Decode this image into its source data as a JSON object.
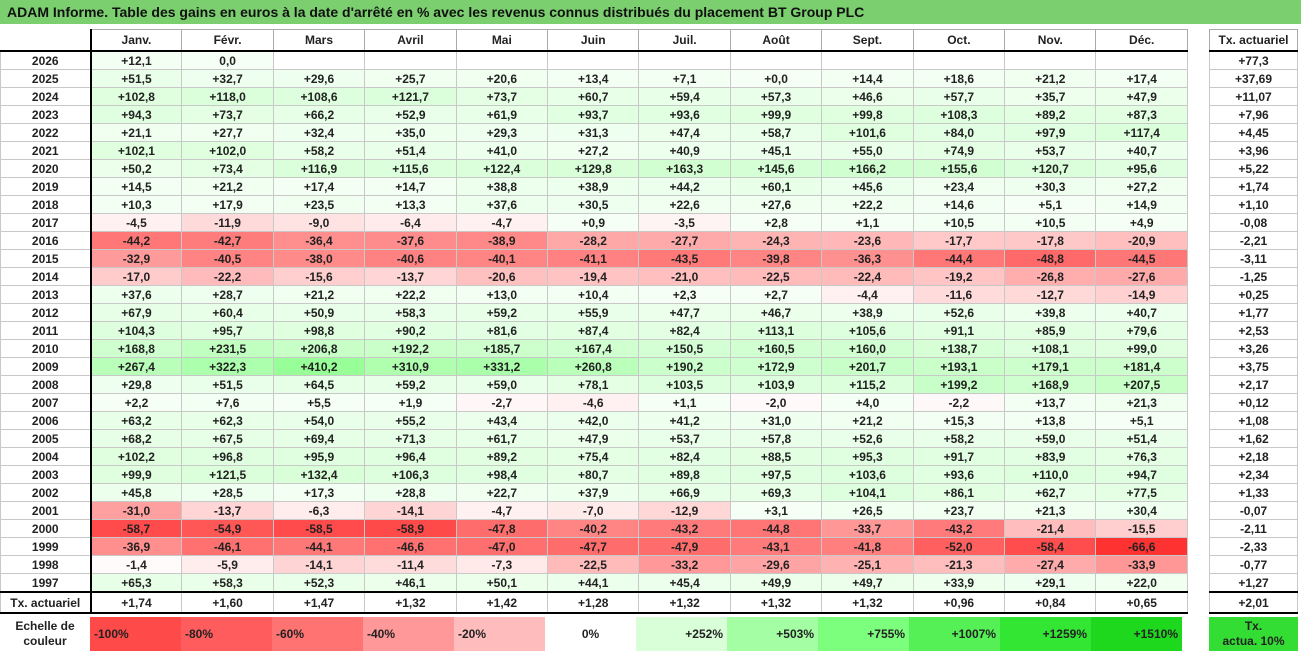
{
  "title": "ADAM Informe. Table des gains en euros à la date d'arrêté en % avec les revenus connus distribués du placement BT Group PLC",
  "months": [
    "Janv.",
    "Févr.",
    "Mars",
    "Avril",
    "Mai",
    "Juin",
    "Juil.",
    "Août",
    "Sept.",
    "Oct.",
    "Nov.",
    "Déc."
  ],
  "side_header": "Tx. actuariel",
  "rows": [
    {
      "year": "2026",
      "v": [
        "+12,1",
        "0,0",
        "",
        "",
        "",
        "",
        "",
        "",
        "",
        "",
        "",
        ""
      ],
      "tx": "+77,3"
    },
    {
      "year": "2025",
      "v": [
        "+51,5",
        "+32,7",
        "+29,6",
        "+25,7",
        "+20,6",
        "+13,4",
        "+7,1",
        "+0,0",
        "+14,4",
        "+18,6",
        "+21,2",
        "+17,4"
      ],
      "tx": "+37,69"
    },
    {
      "year": "2024",
      "v": [
        "+102,8",
        "+118,0",
        "+108,6",
        "+121,7",
        "+73,7",
        "+60,7",
        "+59,4",
        "+57,3",
        "+46,6",
        "+57,7",
        "+35,7",
        "+47,9"
      ],
      "tx": "+11,07"
    },
    {
      "year": "2023",
      "v": [
        "+94,3",
        "+73,7",
        "+66,2",
        "+52,9",
        "+61,9",
        "+93,7",
        "+93,6",
        "+99,9",
        "+99,8",
        "+108,3",
        "+89,2",
        "+87,3"
      ],
      "tx": "+7,96"
    },
    {
      "year": "2022",
      "v": [
        "+21,1",
        "+27,7",
        "+32,4",
        "+35,0",
        "+29,3",
        "+31,3",
        "+47,4",
        "+58,7",
        "+101,6",
        "+84,0",
        "+97,9",
        "+117,4"
      ],
      "tx": "+4,45"
    },
    {
      "year": "2021",
      "v": [
        "+102,1",
        "+102,0",
        "+58,2",
        "+51,4",
        "+41,0",
        "+27,2",
        "+40,9",
        "+45,1",
        "+55,0",
        "+74,9",
        "+53,7",
        "+40,7"
      ],
      "tx": "+3,96"
    },
    {
      "year": "2020",
      "v": [
        "+50,2",
        "+73,4",
        "+116,9",
        "+115,6",
        "+122,4",
        "+129,8",
        "+163,3",
        "+145,6",
        "+166,2",
        "+155,6",
        "+120,7",
        "+95,6"
      ],
      "tx": "+5,22"
    },
    {
      "year": "2019",
      "v": [
        "+14,5",
        "+21,2",
        "+17,4",
        "+14,7",
        "+38,8",
        "+38,9",
        "+44,2",
        "+60,1",
        "+45,6",
        "+23,4",
        "+30,3",
        "+27,2"
      ],
      "tx": "+1,74"
    },
    {
      "year": "2018",
      "v": [
        "+10,3",
        "+17,9",
        "+23,5",
        "+13,3",
        "+37,6",
        "+30,5",
        "+22,6",
        "+27,6",
        "+22,2",
        "+14,6",
        "+5,1",
        "+14,9"
      ],
      "tx": "+1,10"
    },
    {
      "year": "2017",
      "v": [
        "-4,5",
        "-11,9",
        "-9,0",
        "-6,4",
        "-4,7",
        "+0,9",
        "-3,5",
        "+2,8",
        "+1,1",
        "+10,5",
        "+10,5",
        "+4,9"
      ],
      "tx": "-0,08"
    },
    {
      "year": "2016",
      "v": [
        "-44,2",
        "-42,7",
        "-36,4",
        "-37,6",
        "-38,9",
        "-28,2",
        "-27,7",
        "-24,3",
        "-23,6",
        "-17,7",
        "-17,8",
        "-20,9"
      ],
      "tx": "-2,21"
    },
    {
      "year": "2015",
      "v": [
        "-32,9",
        "-40,5",
        "-38,0",
        "-40,6",
        "-40,1",
        "-41,1",
        "-43,5",
        "-39,8",
        "-36,3",
        "-44,4",
        "-48,8",
        "-44,5"
      ],
      "tx": "-3,11"
    },
    {
      "year": "2014",
      "v": [
        "-17,0",
        "-22,2",
        "-15,6",
        "-13,7",
        "-20,6",
        "-19,4",
        "-21,0",
        "-22,5",
        "-22,4",
        "-19,2",
        "-26,8",
        "-27,6"
      ],
      "tx": "-1,25"
    },
    {
      "year": "2013",
      "v": [
        "+37,6",
        "+28,7",
        "+21,2",
        "+22,2",
        "+13,0",
        "+10,4",
        "+2,3",
        "+2,7",
        "-4,4",
        "-11,6",
        "-12,7",
        "-14,9"
      ],
      "tx": "+0,25"
    },
    {
      "year": "2012",
      "v": [
        "+67,9",
        "+60,4",
        "+50,9",
        "+58,3",
        "+59,2",
        "+55,9",
        "+47,7",
        "+46,7",
        "+38,9",
        "+52,6",
        "+39,8",
        "+40,7"
      ],
      "tx": "+1,77"
    },
    {
      "year": "2011",
      "v": [
        "+104,3",
        "+95,7",
        "+98,8",
        "+90,2",
        "+81,6",
        "+87,4",
        "+82,4",
        "+113,1",
        "+105,6",
        "+91,1",
        "+85,9",
        "+79,6"
      ],
      "tx": "+2,53"
    },
    {
      "year": "2010",
      "v": [
        "+168,8",
        "+231,5",
        "+206,8",
        "+192,2",
        "+185,7",
        "+167,4",
        "+150,5",
        "+160,5",
        "+160,0",
        "+138,7",
        "+108,1",
        "+99,0"
      ],
      "tx": "+3,26"
    },
    {
      "year": "2009",
      "v": [
        "+267,4",
        "+322,3",
        "+410,2",
        "+310,9",
        "+331,2",
        "+260,8",
        "+190,2",
        "+172,9",
        "+201,7",
        "+193,1",
        "+179,1",
        "+181,4"
      ],
      "tx": "+3,75"
    },
    {
      "year": "2008",
      "v": [
        "+29,8",
        "+51,5",
        "+64,5",
        "+59,2",
        "+59,0",
        "+78,1",
        "+103,5",
        "+103,9",
        "+115,2",
        "+199,2",
        "+168,9",
        "+207,5"
      ],
      "tx": "+2,17"
    },
    {
      "year": "2007",
      "v": [
        "+2,2",
        "+7,6",
        "+5,5",
        "+1,9",
        "-2,7",
        "-4,6",
        "+1,1",
        "-2,0",
        "+4,0",
        "-2,2",
        "+13,7",
        "+21,3"
      ],
      "tx": "+0,12"
    },
    {
      "year": "2006",
      "v": [
        "+63,2",
        "+62,3",
        "+54,0",
        "+55,2",
        "+43,4",
        "+42,0",
        "+41,2",
        "+31,0",
        "+21,2",
        "+15,3",
        "+13,8",
        "+5,1"
      ],
      "tx": "+1,08"
    },
    {
      "year": "2005",
      "v": [
        "+68,2",
        "+67,5",
        "+69,4",
        "+71,3",
        "+61,7",
        "+47,9",
        "+53,7",
        "+57,8",
        "+52,6",
        "+58,2",
        "+59,0",
        "+51,4"
      ],
      "tx": "+1,62"
    },
    {
      "year": "2004",
      "v": [
        "+102,2",
        "+96,8",
        "+95,9",
        "+96,4",
        "+89,2",
        "+75,4",
        "+82,4",
        "+88,5",
        "+95,3",
        "+91,7",
        "+83,9",
        "+76,3"
      ],
      "tx": "+2,18"
    },
    {
      "year": "2003",
      "v": [
        "+99,9",
        "+121,5",
        "+132,4",
        "+106,3",
        "+98,4",
        "+80,7",
        "+89,8",
        "+97,5",
        "+103,6",
        "+93,6",
        "+110,0",
        "+94,7"
      ],
      "tx": "+2,34"
    },
    {
      "year": "2002",
      "v": [
        "+45,8",
        "+28,5",
        "+17,3",
        "+28,8",
        "+22,7",
        "+37,9",
        "+66,9",
        "+69,3",
        "+104,1",
        "+86,1",
        "+62,7",
        "+77,5"
      ],
      "tx": "+1,33"
    },
    {
      "year": "2001",
      "v": [
        "-31,0",
        "-13,7",
        "-6,3",
        "-14,1",
        "-4,7",
        "-7,0",
        "-12,9",
        "+3,1",
        "+26,5",
        "+23,7",
        "+21,3",
        "+30,4"
      ],
      "tx": "-0,07"
    },
    {
      "year": "2000",
      "v": [
        "-58,7",
        "-54,9",
        "-58,5",
        "-58,9",
        "-47,8",
        "-40,2",
        "-43,2",
        "-44,8",
        "-33,7",
        "-43,2",
        "-21,4",
        "-15,5"
      ],
      "tx": "-2,11"
    },
    {
      "year": "1999",
      "v": [
        "-36,9",
        "-46,1",
        "-44,1",
        "-46,6",
        "-47,0",
        "-47,7",
        "-47,9",
        "-43,1",
        "-41,8",
        "-52,0",
        "-58,4",
        "-66,6"
      ],
      "tx": "-2,33"
    },
    {
      "year": "1998",
      "v": [
        "-1,4",
        "-5,9",
        "-14,1",
        "-11,4",
        "-7,3",
        "-22,5",
        "-33,2",
        "-29,6",
        "-25,1",
        "-21,3",
        "-27,4",
        "-33,9"
      ],
      "tx": "-0,77"
    },
    {
      "year": "1997",
      "v": [
        "+65,3",
        "+58,3",
        "+52,3",
        "+46,1",
        "+50,1",
        "+44,1",
        "+45,4",
        "+49,9",
        "+49,7",
        "+33,9",
        "+29,1",
        "+22,0"
      ],
      "tx": "+1,27"
    }
  ],
  "tx_row": {
    "label": "Tx. actuariel",
    "v": [
      "+1,74",
      "+1,60",
      "+1,47",
      "+1,32",
      "+1,42",
      "+1,28",
      "+1,32",
      "+1,32",
      "+1,32",
      "+0,96",
      "+0,84",
      "+0,65"
    ],
    "total": "+2,01"
  },
  "legend": {
    "label_line1": "Echelle de",
    "label_line2": "couleur",
    "swatches": [
      {
        "text": "-100%",
        "color": "#ff4a4a",
        "align": "left"
      },
      {
        "text": "-80%",
        "color": "#ff5d5d",
        "align": "left"
      },
      {
        "text": "-60%",
        "color": "#ff7373",
        "align": "left"
      },
      {
        "text": "-40%",
        "color": "#ff9898",
        "align": "left"
      },
      {
        "text": "-20%",
        "color": "#ffbcbc",
        "align": "left"
      },
      {
        "text": "0%",
        "color": "#ffffff",
        "align": "center"
      },
      {
        "text": "+252%",
        "color": "#d8ffd8",
        "align": "right"
      },
      {
        "text": "+503%",
        "color": "#a4ffa4",
        "align": "right"
      },
      {
        "text": "+755%",
        "color": "#7cff7c",
        "align": "right"
      },
      {
        "text": "+1007%",
        "color": "#55f055",
        "align": "right"
      },
      {
        "text": "+1259%",
        "color": "#33e633",
        "align": "right"
      },
      {
        "text": "+1510%",
        "color": "#1ed81e",
        "align": "right"
      }
    ],
    "tx_line1": "Tx.",
    "tx_line2": "actua. 10%"
  }
}
